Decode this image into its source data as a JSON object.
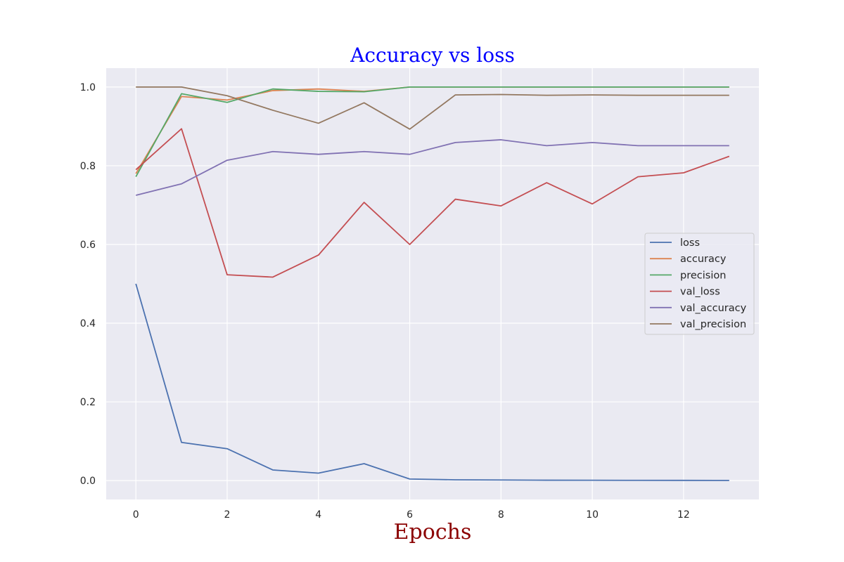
{
  "chart_data": {
    "type": "line",
    "title": "Accuracy vs loss",
    "xlabel": "Epochs",
    "ylabel": "",
    "xlim": [
      -0.65,
      13.65
    ],
    "ylim": [
      -0.048,
      1.048
    ],
    "xticks": [
      0,
      2,
      4,
      6,
      8,
      10,
      12
    ],
    "yticks": [
      0.0,
      0.2,
      0.4,
      0.6,
      0.8,
      1.0
    ],
    "xtick_labels": [
      "0",
      "2",
      "4",
      "6",
      "8",
      "10",
      "12"
    ],
    "ytick_labels": [
      "0.0",
      "0.2",
      "0.4",
      "0.6",
      "0.8",
      "1.0"
    ],
    "grid": true,
    "legend_position": "center-right",
    "background": "#eaeaf2",
    "x": [
      0,
      1,
      2,
      3,
      4,
      5,
      6,
      7,
      8,
      9,
      10,
      11,
      12,
      13
    ],
    "series": [
      {
        "name": "loss",
        "color": "#4c72b0",
        "values": [
          0.5,
          0.097,
          0.081,
          0.027,
          0.019,
          0.043,
          0.004,
          0.002,
          0.0015,
          0.001,
          0.0008,
          0.0006,
          0.0005,
          0.0004
        ]
      },
      {
        "name": "accuracy",
        "color": "#dd8452",
        "values": [
          0.78,
          0.976,
          0.967,
          0.991,
          0.995,
          0.989,
          1.0,
          1.0,
          1.0,
          1.0,
          1.0,
          1.0,
          1.0,
          1.0
        ]
      },
      {
        "name": "precision",
        "color": "#55a868",
        "values": [
          0.772,
          0.983,
          0.961,
          0.995,
          0.989,
          0.988,
          1.0,
          1.0,
          1.0,
          1.0,
          1.0,
          1.0,
          1.0,
          1.0
        ]
      },
      {
        "name": "val_loss",
        "color": "#c44e52",
        "values": [
          0.79,
          0.894,
          0.523,
          0.517,
          0.573,
          0.707,
          0.6,
          0.715,
          0.698,
          0.757,
          0.703,
          0.772,
          0.782,
          0.824
        ]
      },
      {
        "name": "val_accuracy",
        "color": "#8172b3",
        "values": [
          0.725,
          0.754,
          0.814,
          0.836,
          0.829,
          0.836,
          0.829,
          0.859,
          0.866,
          0.851,
          0.859,
          0.851,
          0.851,
          0.851
        ]
      },
      {
        "name": "val_precision",
        "color": "#937860",
        "values": [
          1.0,
          1.0,
          0.978,
          0.941,
          0.908,
          0.96,
          0.893,
          0.98,
          0.981,
          0.979,
          0.98,
          0.979,
          0.979,
          0.979
        ]
      }
    ]
  }
}
